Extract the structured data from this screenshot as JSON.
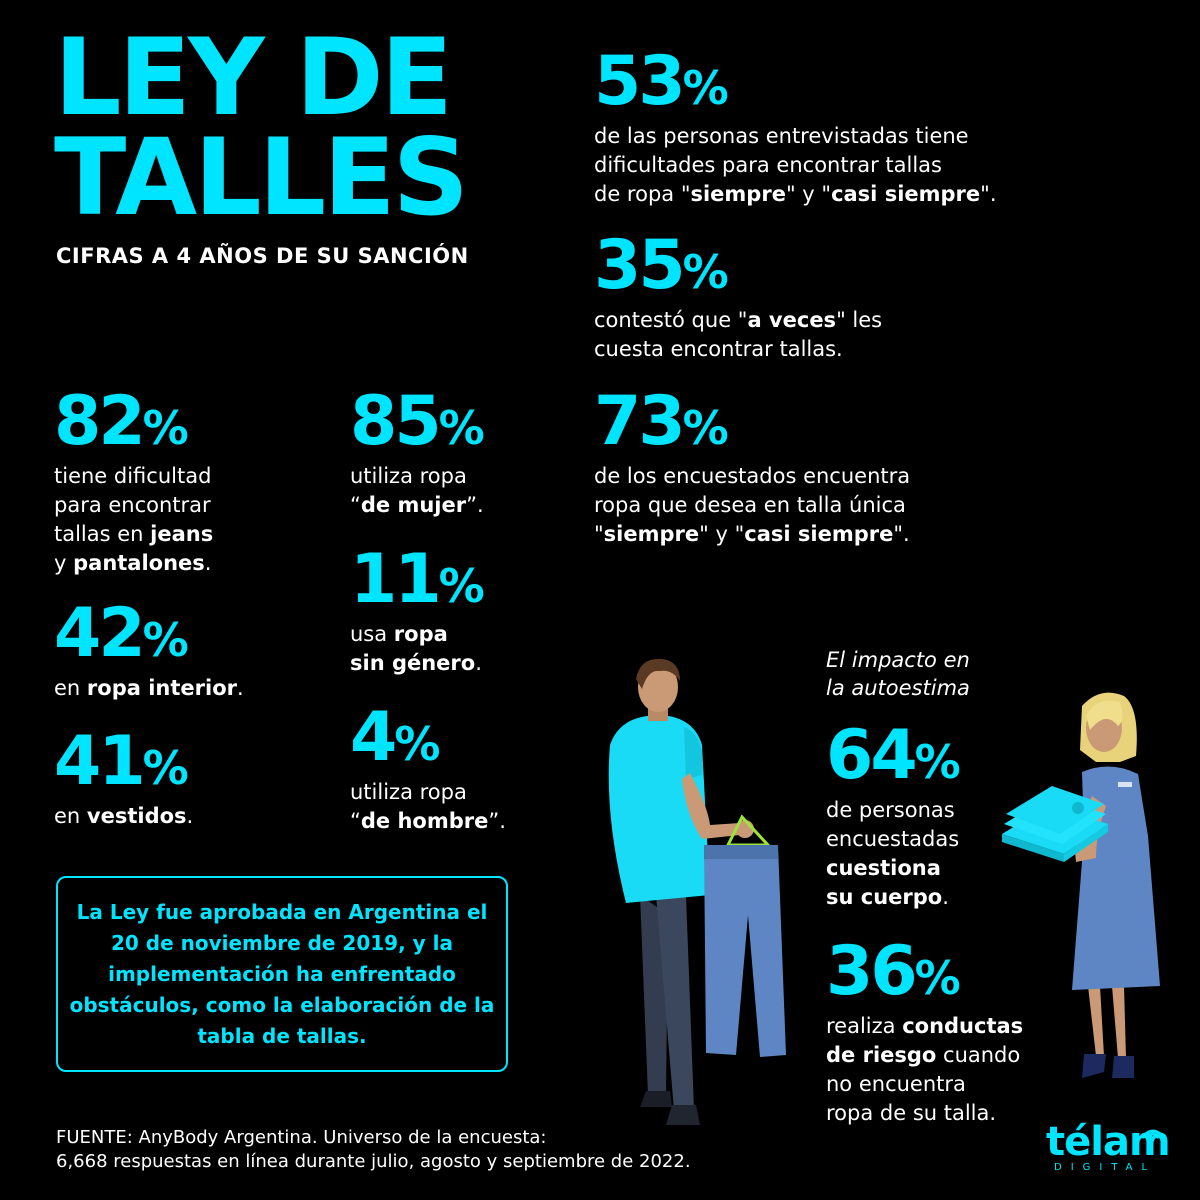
{
  "title": {
    "line1": "LEY DE",
    "line2": "TALLES"
  },
  "subtitle": "CIFRAS A 4 AÑOS DE SU SANCIÓN",
  "stats": {
    "s53": {
      "value": "53",
      "sign": "%",
      "t1": "de las personas entrevistadas tiene",
      "t2": "dificultades para encontrar tallas",
      "t3a": "de ropa \"",
      "t3b": "siempre",
      "t3c": "\" y \"",
      "t3d": "casi siempre",
      "t3e": "\"."
    },
    "s35": {
      "value": "35",
      "sign": "%",
      "t1a": "contestó que \"",
      "t1b": "a veces",
      "t1c": "\" les",
      "t2": "cuesta encontrar tallas."
    },
    "s73": {
      "value": "73",
      "sign": "%",
      "t1": "de los encuestados encuentra",
      "t2": "ropa que desea en talla única",
      "t3a": "\"",
      "t3b": "siempre",
      "t3c": "\" y \"",
      "t3d": "casi siempre",
      "t3e": "\"."
    },
    "s82": {
      "value": "82",
      "sign": "%",
      "t1": "tiene dificultad",
      "t2": "para encontrar",
      "t3a": "tallas en ",
      "t3b": "jeans",
      "t4a": "y ",
      "t4b": "pantalones",
      "t4c": "."
    },
    "s42": {
      "value": "42",
      "sign": "%",
      "t1a": "en ",
      "t1b": "ropa interior",
      "t1c": "."
    },
    "s41": {
      "value": "41",
      "sign": "%",
      "t1a": "en ",
      "t1b": "vestidos",
      "t1c": "."
    },
    "s85": {
      "value": "85",
      "sign": "%",
      "t1": "utiliza ropa",
      "t2a": "“",
      "t2b": "de mujer",
      "t2c": "”."
    },
    "s11": {
      "value": "11",
      "sign": "%",
      "t1a": "usa ",
      "t1b": "ropa",
      "t2a": "sin género",
      "t2b": "."
    },
    "s4": {
      "value": "4",
      "sign": "%",
      "t1": "utiliza ropa",
      "t2a": "“",
      "t2b": "de hombre",
      "t2c": "”."
    },
    "s64": {
      "value": "64",
      "sign": "%",
      "t1": "de personas",
      "t2": "encuestadas",
      "t3": "cuestiona",
      "t4a": "su cuerpo",
      "t4b": "."
    },
    "s36": {
      "value": "36",
      "sign": "%",
      "t1a": "realiza ",
      "t1b": "conductas",
      "t2a": "de riesgo",
      "t2b": " cuando",
      "t3": "no encuentra",
      "t4": "ropa de su talla."
    }
  },
  "impact_heading": {
    "l1": "El impacto en",
    "l2": "la autoestima"
  },
  "info_box": "La Ley fue aprobada en Argentina el 20 de noviembre de 2019, y la implementación ha enfrentado obstáculos, como la elaboración de la tabla de tallas.",
  "source": {
    "l1": "FUENTE: AnyBody Argentina. Universo de la encuesta:",
    "l2": "6,668 respuestas en línea durante julio, agosto y septiembre de 2022."
  },
  "logo": {
    "main": "télam",
    "sub": "DIGITAL"
  },
  "colors": {
    "accent": "#00e5ff",
    "background": "#000000",
    "text": "#ffffff"
  }
}
